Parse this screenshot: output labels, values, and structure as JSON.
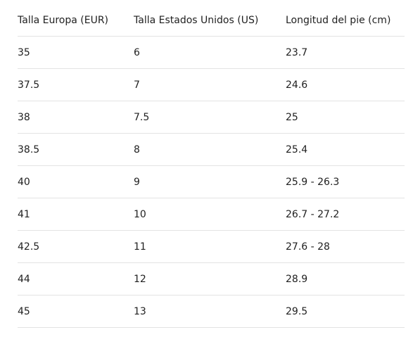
{
  "table": {
    "header": [
      "Talla Europa (EUR)",
      "Talla Estados Unidos (US)",
      "Longitud del pie (cm)"
    ],
    "rows": [
      [
        "35",
        "6",
        "23.7"
      ],
      [
        "37.5",
        "7",
        "24.6"
      ],
      [
        "38",
        "7.5",
        "25"
      ],
      [
        "38.5",
        "8",
        "25.4"
      ],
      [
        "40",
        "9",
        "25.9 - 26.3"
      ],
      [
        "41",
        "10",
        "26.7 - 27.2"
      ],
      [
        "42.5",
        "11",
        "27.6 - 28"
      ],
      [
        "44",
        "12",
        "28.9"
      ],
      [
        "45",
        "13",
        "29.5"
      ]
    ]
  }
}
